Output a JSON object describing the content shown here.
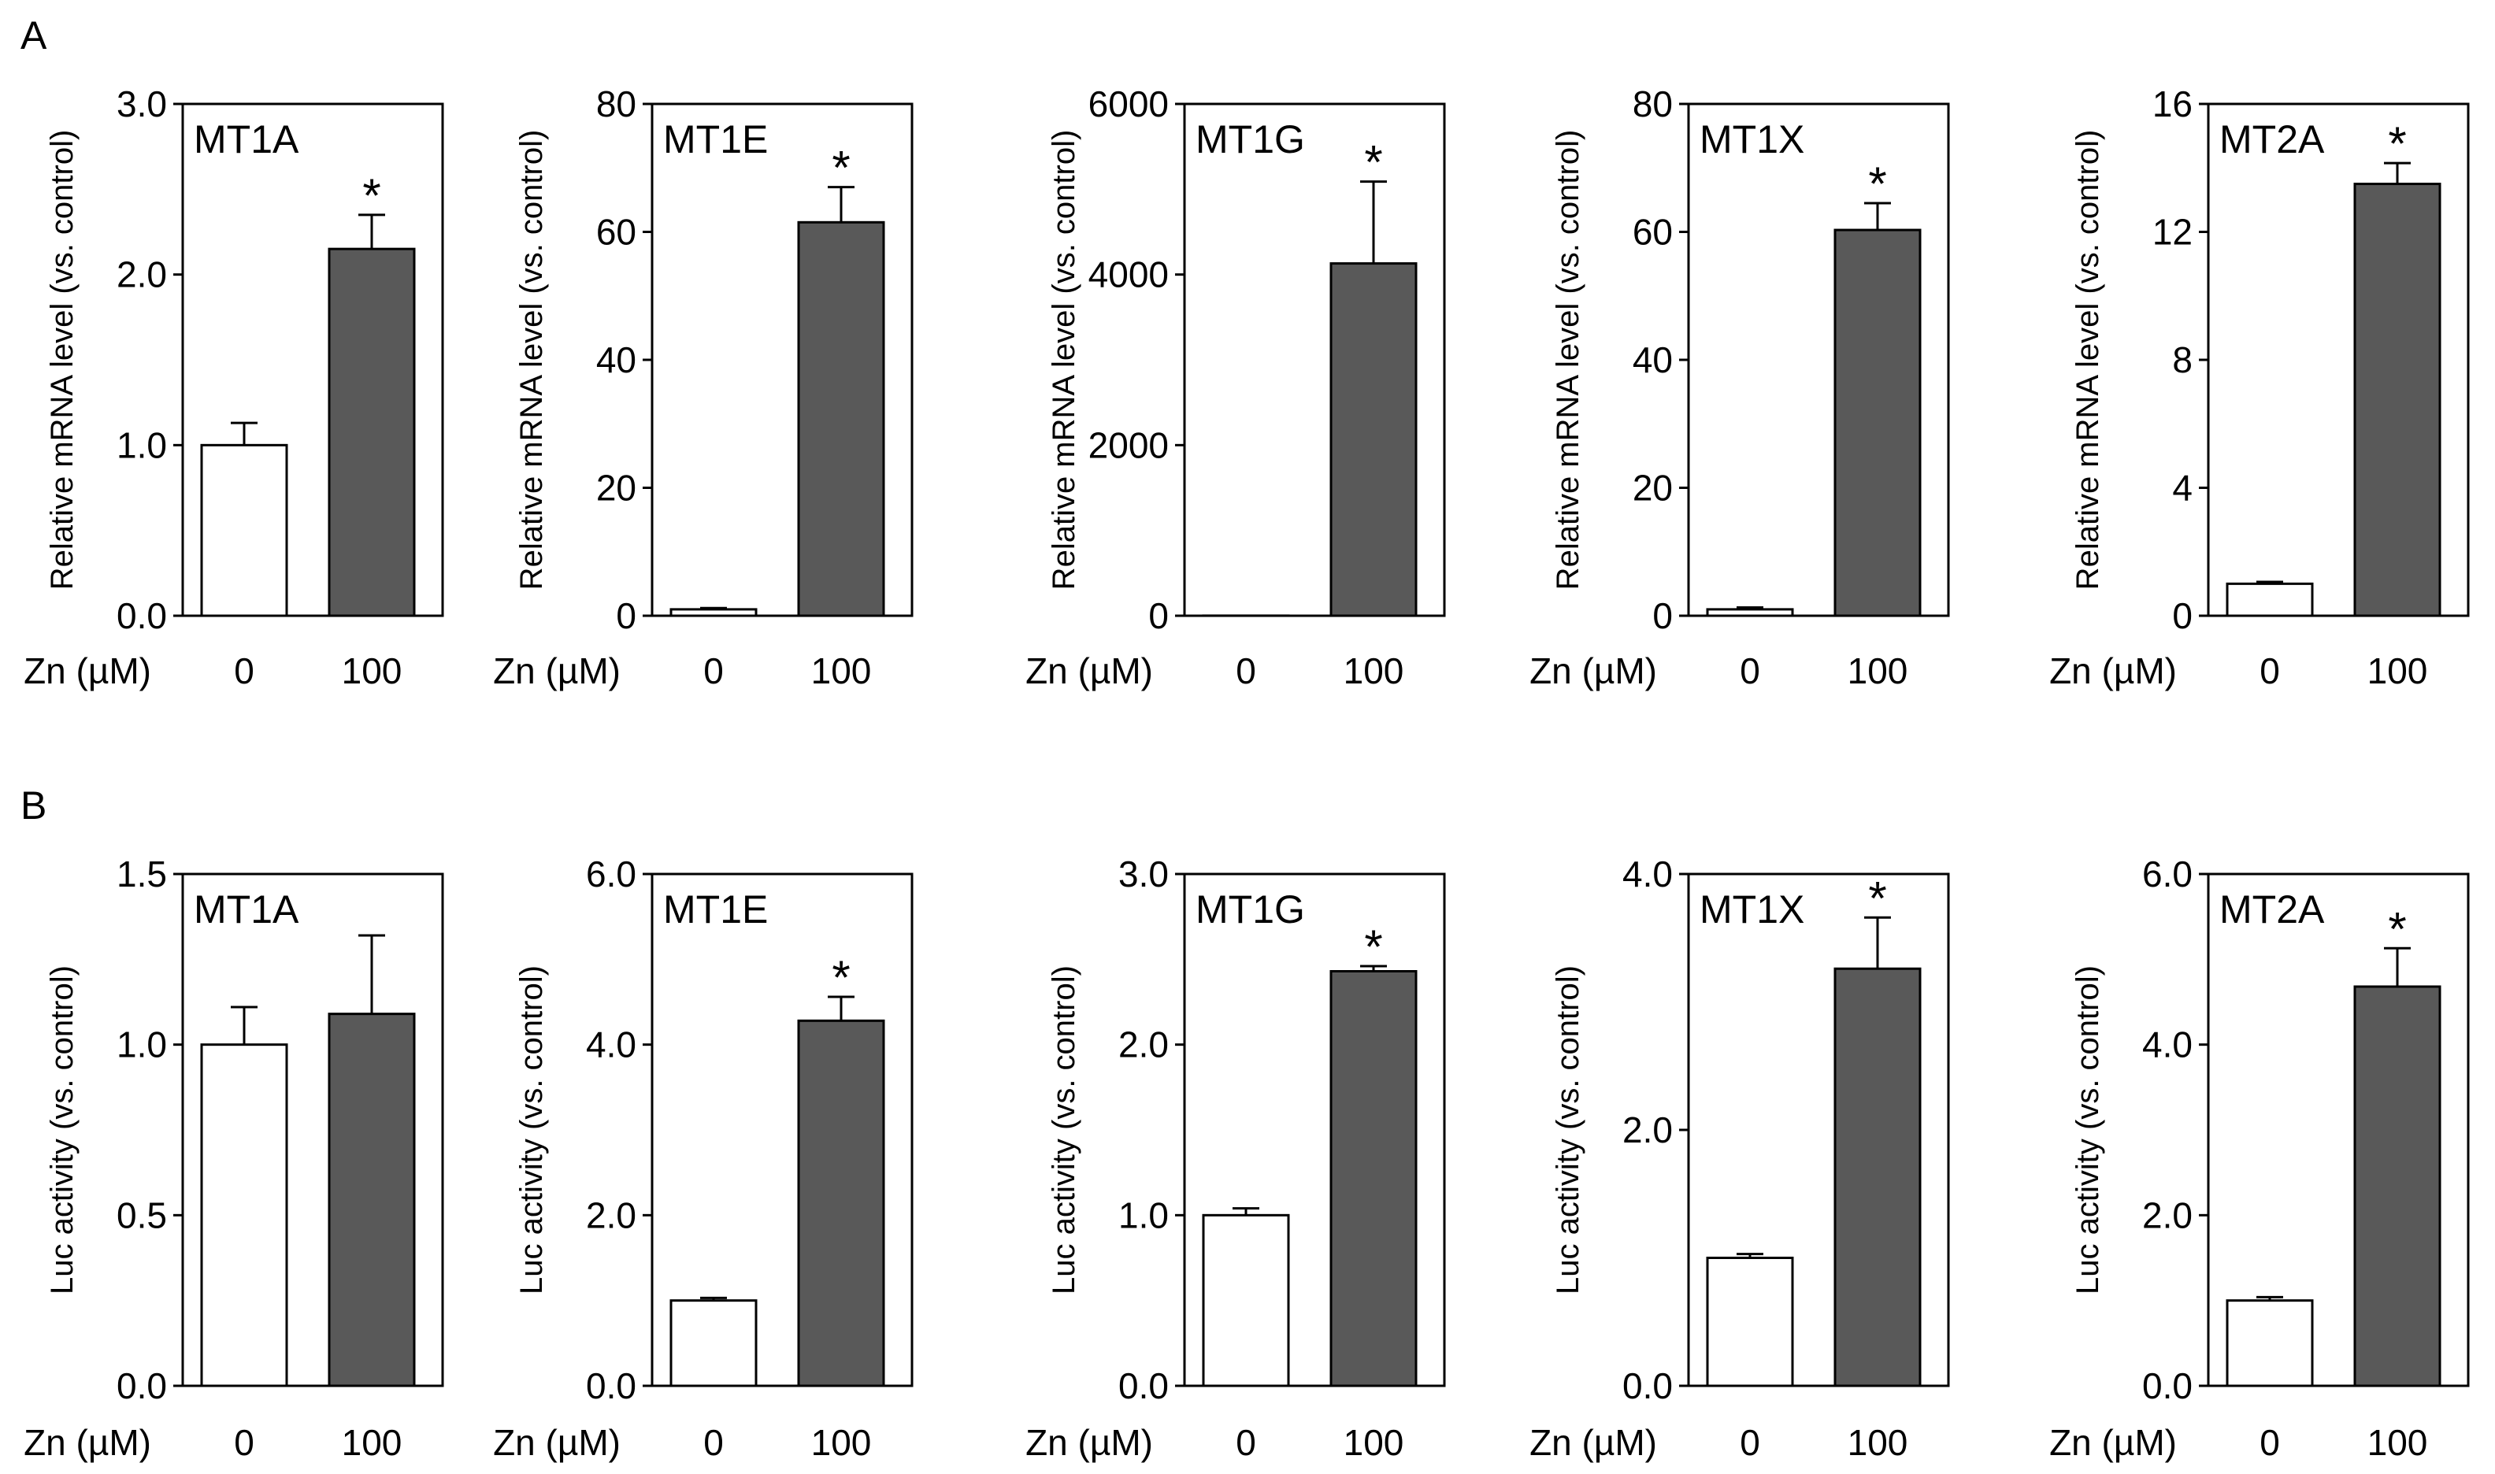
{
  "panels": [
    {
      "letter": "A",
      "ylabel": "Relative mRNA level (vs. control)",
      "xlabel": "Zn (µM)",
      "categories": [
        "0",
        "100"
      ],
      "colors": {
        "control": "#ffffff",
        "treated": "#595959"
      }
    },
    {
      "letter": "B",
      "ylabel": "Luc activity (vs. control)",
      "xlabel": "Zn (µM)",
      "categories": [
        "0",
        "100"
      ],
      "colors": {
        "control": "#ffffff",
        "treated": "#595959"
      }
    }
  ],
  "chart_data": [
    {
      "type": "bar",
      "panel": "A",
      "title": "MT1A",
      "categories": [
        "0",
        "100"
      ],
      "values": [
        1.0,
        2.15
      ],
      "errors": [
        0.13,
        0.2
      ],
      "significant": [
        false,
        true
      ],
      "ylim": [
        0,
        3
      ],
      "yticks": [
        "0.0",
        "1.0",
        "2.0",
        "3.0"
      ],
      "ylabel": "Relative mRNA level (vs. control)",
      "xlabel": "Zn (µM)"
    },
    {
      "type": "bar",
      "panel": "A",
      "title": "MT1E",
      "categories": [
        "0",
        "100"
      ],
      "values": [
        1.0,
        61.5
      ],
      "errors": [
        0.2,
        5.5
      ],
      "significant": [
        false,
        true
      ],
      "ylim": [
        0,
        80
      ],
      "yticks": [
        "0",
        "20",
        "40",
        "60",
        "80"
      ],
      "ylabel": "Relative mRNA level (vs. control)",
      "xlabel": "Zn (µM)"
    },
    {
      "type": "bar",
      "panel": "A",
      "title": "MT1G",
      "categories": [
        "0",
        "100"
      ],
      "values": [
        1.0,
        4130
      ],
      "errors": [
        2,
        960
      ],
      "significant": [
        false,
        true
      ],
      "ylim": [
        0,
        6000
      ],
      "yticks": [
        "0",
        "2000",
        "4000",
        "6000"
      ],
      "ylabel": "Relative mRNA level (vs. control)",
      "xlabel": "Zn (µM)"
    },
    {
      "type": "bar",
      "panel": "A",
      "title": "MT1X",
      "categories": [
        "0",
        "100"
      ],
      "values": [
        1.0,
        60.3
      ],
      "errors": [
        0.3,
        4.2
      ],
      "significant": [
        false,
        true
      ],
      "ylim": [
        0,
        80
      ],
      "yticks": [
        "0",
        "20",
        "40",
        "60",
        "80"
      ],
      "ylabel": "Relative mRNA level (vs. control)",
      "xlabel": "Zn (µM)"
    },
    {
      "type": "bar",
      "panel": "A",
      "title": "MT2A",
      "categories": [
        "0",
        "100"
      ],
      "values": [
        1.0,
        13.5
      ],
      "errors": [
        0.06,
        0.65
      ],
      "significant": [
        false,
        true
      ],
      "ylim": [
        0,
        16
      ],
      "yticks": [
        "0",
        "4",
        "8",
        "12",
        "16"
      ],
      "ylabel": "Relative mRNA level (vs. control)",
      "xlabel": "Zn (µM)"
    },
    {
      "type": "bar",
      "panel": "B",
      "title": "MT1A",
      "categories": [
        "0",
        "100"
      ],
      "values": [
        1.0,
        1.09
      ],
      "errors": [
        0.11,
        0.23
      ],
      "significant": [
        false,
        false
      ],
      "ylim": [
        0,
        1.5
      ],
      "yticks": [
        "0.0",
        "0.5",
        "1.0",
        "1.5"
      ],
      "ylabel": "Luc activity (vs. control)",
      "xlabel": "Zn (µM)"
    },
    {
      "type": "bar",
      "panel": "B",
      "title": "MT1E",
      "categories": [
        "0",
        "100"
      ],
      "values": [
        1.0,
        4.28
      ],
      "errors": [
        0.03,
        0.28
      ],
      "significant": [
        false,
        true
      ],
      "ylim": [
        0,
        6
      ],
      "yticks": [
        "0.0",
        "2.0",
        "4.0",
        "6.0"
      ],
      "ylabel": "Luc activity (vs. control)",
      "xlabel": "Zn (µM)"
    },
    {
      "type": "bar",
      "panel": "B",
      "title": "MT1G",
      "categories": [
        "0",
        "100"
      ],
      "values": [
        1.0,
        2.43
      ],
      "errors": [
        0.04,
        0.03
      ],
      "significant": [
        false,
        true
      ],
      "ylim": [
        0,
        3
      ],
      "yticks": [
        "0.0",
        "1.0",
        "2.0",
        "3.0"
      ],
      "ylabel": "Luc activity (vs. control)",
      "xlabel": "Zn (µM)"
    },
    {
      "type": "bar",
      "panel": "B",
      "title": "MT1X",
      "categories": [
        "0",
        "100"
      ],
      "values": [
        1.0,
        3.26
      ],
      "errors": [
        0.03,
        0.4
      ],
      "significant": [
        false,
        true
      ],
      "ylim": [
        0,
        4
      ],
      "yticks": [
        "0.0",
        "2.0",
        "4.0"
      ],
      "ylabel": "Luc activity (vs. control)",
      "xlabel": "Zn (µM)"
    },
    {
      "type": "bar",
      "panel": "B",
      "title": "MT2A",
      "categories": [
        "0",
        "100"
      ],
      "values": [
        1.0,
        4.68
      ],
      "errors": [
        0.04,
        0.45
      ],
      "significant": [
        false,
        true
      ],
      "ylim": [
        0,
        6
      ],
      "yticks": [
        "0.0",
        "2.0",
        "4.0",
        "6.0"
      ],
      "ylabel": "Luc activity (vs. control)",
      "xlabel": "Zn (µM)"
    }
  ]
}
